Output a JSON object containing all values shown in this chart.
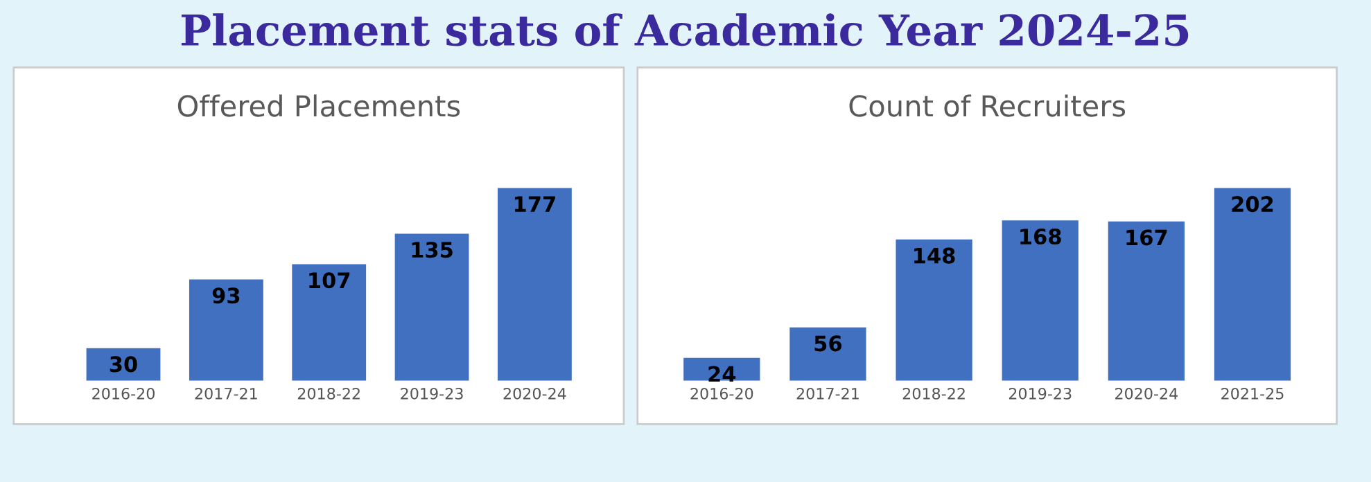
{
  "chart_data": [
    {
      "type": "bar",
      "title": "Offered Placements",
      "annotations": [
        "Placement stats of Academic Year 2024-25"
      ],
      "categories": [
        "2016-20",
        "2017-21",
        "2018-22",
        "2019-23",
        "2020-24"
      ],
      "values": [
        30,
        93,
        107,
        135,
        177
      ],
      "color": "#4170c0",
      "data_labels": true
    },
    {
      "type": "bar",
      "title": "Count of Recruiters",
      "categories": [
        "2016-20",
        "2017-21",
        "2018-22",
        "2019-23",
        "2020-24",
        "2021-25"
      ],
      "values": [
        24,
        56,
        148,
        168,
        167,
        202
      ],
      "color": "#4170c0",
      "data_labels": true
    }
  ]
}
